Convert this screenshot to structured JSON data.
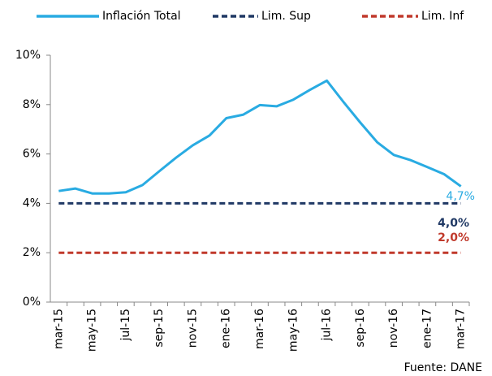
{
  "chart_data": {
    "type": "line",
    "categories": [
      "mar-15",
      null,
      "may-15",
      null,
      "jul-15",
      null,
      "sep-15",
      null,
      "nov-15",
      null,
      "ene-16",
      null,
      "mar-16",
      null,
      "may-16",
      null,
      "jul-16",
      null,
      "sep-16",
      null,
      "nov-16",
      null,
      "ene-17",
      null,
      "mar-17"
    ],
    "series": [
      {
        "name": "Inflación Total",
        "color": "#29abe2",
        "dash": false,
        "values": [
          4.5,
          4.6,
          4.4,
          4.4,
          4.45,
          4.74,
          5.3,
          5.85,
          6.35,
          6.75,
          7.45,
          7.59,
          7.98,
          7.93,
          8.2,
          8.6,
          8.97,
          8.1,
          7.27,
          6.48,
          5.96,
          5.75,
          5.47,
          5.18,
          4.69
        ],
        "value_labels": [
          null,
          null,
          null,
          null,
          null,
          null,
          null,
          null,
          null,
          null,
          null,
          null,
          null,
          null,
          null,
          null,
          null,
          null,
          null,
          null,
          null,
          null,
          null,
          null,
          "4,7%"
        ]
      },
      {
        "name": "Lim. Sup",
        "color": "#1f3864",
        "dash": true,
        "values": [
          4,
          4,
          4,
          4,
          4,
          4,
          4,
          4,
          4,
          4,
          4,
          4,
          4,
          4,
          4,
          4,
          4,
          4,
          4,
          4,
          4,
          4,
          4,
          4,
          4
        ],
        "value_labels": [
          null,
          null,
          null,
          null,
          null,
          null,
          null,
          null,
          null,
          null,
          null,
          null,
          null,
          null,
          null,
          null,
          null,
          null,
          null,
          null,
          null,
          null,
          null,
          null,
          "4,0%"
        ]
      },
      {
        "name": "Lim. Inf",
        "color": "#c0392b",
        "dash": true,
        "values": [
          2,
          2,
          2,
          2,
          2,
          2,
          2,
          2,
          2,
          2,
          2,
          2,
          2,
          2,
          2,
          2,
          2,
          2,
          2,
          2,
          2,
          2,
          2,
          2,
          2
        ],
        "value_labels": [
          null,
          null,
          null,
          null,
          null,
          null,
          null,
          null,
          null,
          null,
          null,
          null,
          null,
          null,
          null,
          null,
          null,
          null,
          null,
          null,
          null,
          null,
          null,
          null,
          "2,0%"
        ]
      }
    ],
    "ylim": [
      0,
      10
    ],
    "yticks": [
      {
        "value": 0,
        "label": "0%"
      },
      {
        "value": 2,
        "label": "2%"
      },
      {
        "value": 4,
        "label": "4%"
      },
      {
        "value": 6,
        "label": "6%"
      },
      {
        "value": 8,
        "label": "8%"
      },
      {
        "value": 10,
        "label": "10%"
      }
    ],
    "grid": false,
    "legend": "top",
    "source": "Fuente: DANE"
  }
}
